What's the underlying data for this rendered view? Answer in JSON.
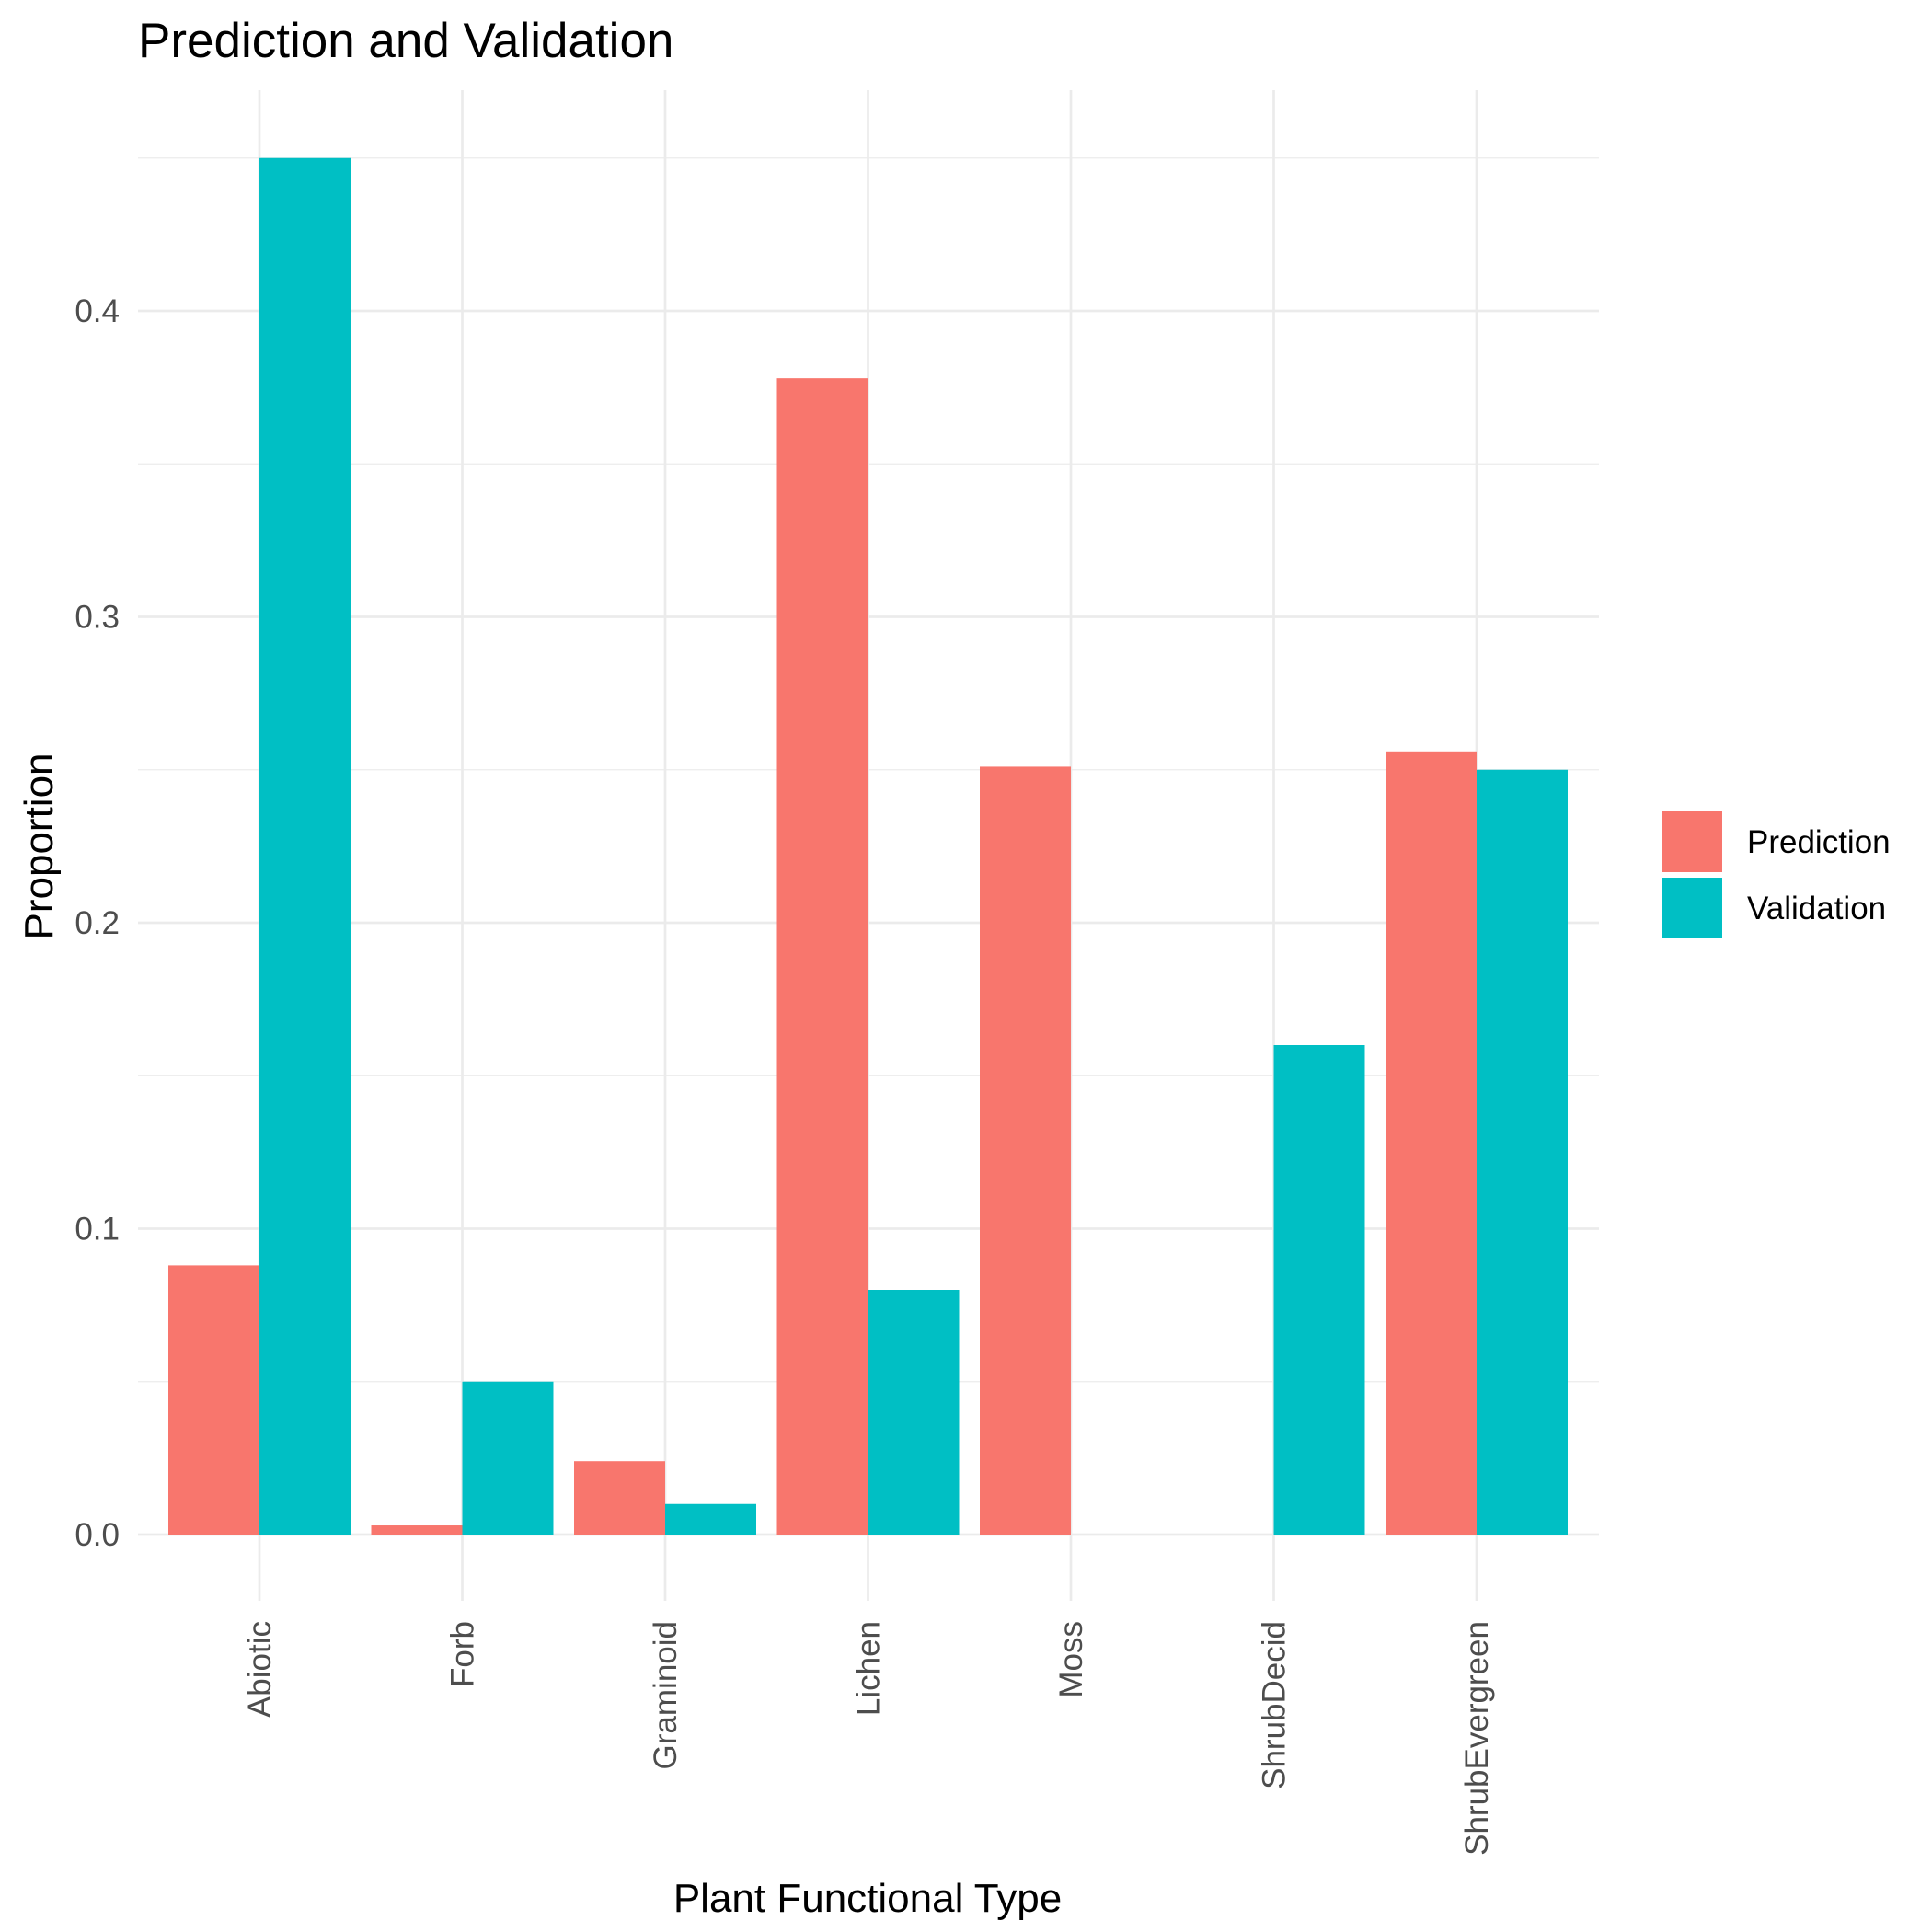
{
  "chart_data": {
    "type": "bar",
    "title": "Prediction and Validation",
    "xlabel": "Plant Functional Type",
    "ylabel": "Proportion",
    "categories": [
      "Abiotic",
      "Forb",
      "Graminoid",
      "Lichen",
      "Moss",
      "ShrubDecid",
      "ShrubEvergreen"
    ],
    "series": [
      {
        "name": "Prediction",
        "color": "#F8766D",
        "values": [
          0.088,
          0.003,
          0.024,
          0.378,
          0.251,
          null,
          0.256
        ]
      },
      {
        "name": "Validation",
        "color": "#00BFC4",
        "values": [
          0.45,
          0.05,
          0.01,
          0.08,
          null,
          0.16,
          0.25
        ]
      }
    ],
    "yticks": [
      "0.0",
      "0.1",
      "0.2",
      "0.3",
      "0.4"
    ],
    "ytick_values": [
      0,
      0.1,
      0.2,
      0.3,
      0.4
    ],
    "ylim": [
      0,
      0.45
    ],
    "grid": true,
    "legend_position": "right"
  }
}
